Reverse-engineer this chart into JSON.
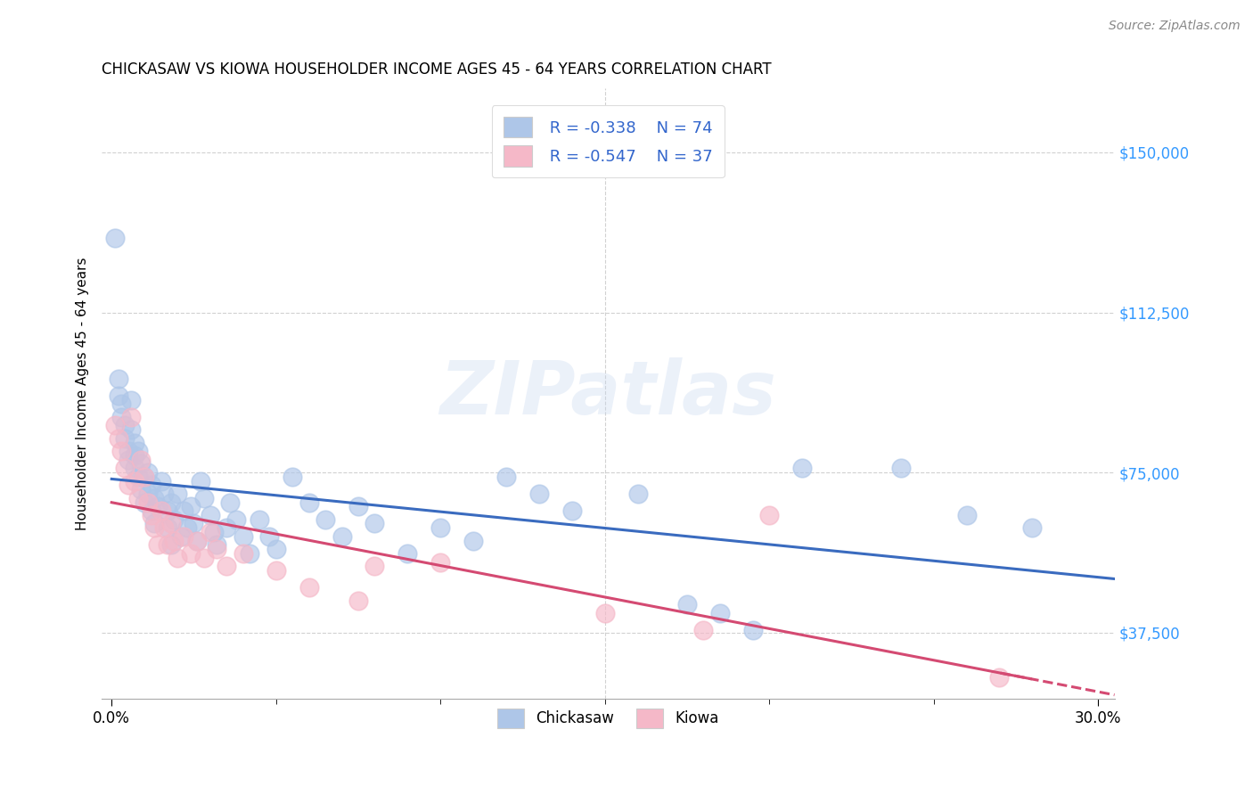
{
  "title": "CHICKASAW VS KIOWA HOUSEHOLDER INCOME AGES 45 - 64 YEARS CORRELATION CHART",
  "source": "Source: ZipAtlas.com",
  "xlabel_ticks": [
    "0.0%",
    "30.0%"
  ],
  "xlabel_tick_vals": [
    0.0,
    0.3
  ],
  "xlabel_minor_ticks": [
    0.05,
    0.1,
    0.15,
    0.2,
    0.25
  ],
  "ylabel_ticks": [
    "$37,500",
    "$75,000",
    "$112,500",
    "$150,000"
  ],
  "ylabel_tick_vals": [
    37500,
    75000,
    112500,
    150000
  ],
  "ylabel_label": "Householder Income Ages 45 - 64 years",
  "xlim": [
    -0.003,
    0.305
  ],
  "ylim": [
    22000,
    165000
  ],
  "watermark": "ZIPatlas",
  "chickasaw_color": "#aec6e8",
  "kiowa_color": "#f5b8c8",
  "chickasaw_line_color": "#3a6bbf",
  "kiowa_line_color": "#d44a72",
  "legend_r_chickasaw": "R = -0.338",
  "legend_n_chickasaw": "N = 74",
  "legend_r_kiowa": "R = -0.547",
  "legend_n_kiowa": "N = 37",
  "background_color": "#ffffff",
  "grid_color": "#cccccc",
  "chickasaw_scatter": [
    [
      0.001,
      130000
    ],
    [
      0.002,
      97000
    ],
    [
      0.002,
      93000
    ],
    [
      0.003,
      91000
    ],
    [
      0.003,
      88000
    ],
    [
      0.004,
      86000
    ],
    [
      0.004,
      83000
    ],
    [
      0.005,
      80000
    ],
    [
      0.005,
      78000
    ],
    [
      0.006,
      92000
    ],
    [
      0.006,
      85000
    ],
    [
      0.007,
      82000
    ],
    [
      0.007,
      79000
    ],
    [
      0.007,
      76000
    ],
    [
      0.008,
      80000
    ],
    [
      0.008,
      74000
    ],
    [
      0.009,
      77000
    ],
    [
      0.009,
      71000
    ],
    [
      0.01,
      74000
    ],
    [
      0.01,
      68000
    ],
    [
      0.011,
      75000
    ],
    [
      0.011,
      70000
    ],
    [
      0.012,
      72000
    ],
    [
      0.012,
      66000
    ],
    [
      0.013,
      69000
    ],
    [
      0.013,
      63000
    ],
    [
      0.014,
      67000
    ],
    [
      0.015,
      73000
    ],
    [
      0.016,
      70000
    ],
    [
      0.017,
      66000
    ],
    [
      0.017,
      62000
    ],
    [
      0.018,
      68000
    ],
    [
      0.018,
      58000
    ],
    [
      0.019,
      64000
    ],
    [
      0.02,
      70000
    ],
    [
      0.021,
      60000
    ],
    [
      0.022,
      66000
    ],
    [
      0.023,
      62000
    ],
    [
      0.024,
      67000
    ],
    [
      0.025,
      63000
    ],
    [
      0.026,
      59000
    ],
    [
      0.027,
      73000
    ],
    [
      0.028,
      69000
    ],
    [
      0.03,
      65000
    ],
    [
      0.031,
      61000
    ],
    [
      0.032,
      58000
    ],
    [
      0.035,
      62000
    ],
    [
      0.036,
      68000
    ],
    [
      0.038,
      64000
    ],
    [
      0.04,
      60000
    ],
    [
      0.042,
      56000
    ],
    [
      0.045,
      64000
    ],
    [
      0.048,
      60000
    ],
    [
      0.05,
      57000
    ],
    [
      0.055,
      74000
    ],
    [
      0.06,
      68000
    ],
    [
      0.065,
      64000
    ],
    [
      0.07,
      60000
    ],
    [
      0.075,
      67000
    ],
    [
      0.08,
      63000
    ],
    [
      0.09,
      56000
    ],
    [
      0.1,
      62000
    ],
    [
      0.11,
      59000
    ],
    [
      0.12,
      74000
    ],
    [
      0.13,
      70000
    ],
    [
      0.14,
      66000
    ],
    [
      0.16,
      70000
    ],
    [
      0.175,
      44000
    ],
    [
      0.185,
      42000
    ],
    [
      0.195,
      38000
    ],
    [
      0.21,
      76000
    ],
    [
      0.24,
      76000
    ],
    [
      0.26,
      65000
    ],
    [
      0.28,
      62000
    ]
  ],
  "kiowa_scatter": [
    [
      0.001,
      86000
    ],
    [
      0.002,
      83000
    ],
    [
      0.003,
      80000
    ],
    [
      0.004,
      76000
    ],
    [
      0.005,
      72000
    ],
    [
      0.006,
      88000
    ],
    [
      0.007,
      73000
    ],
    [
      0.008,
      69000
    ],
    [
      0.009,
      78000
    ],
    [
      0.01,
      74000
    ],
    [
      0.011,
      68000
    ],
    [
      0.012,
      65000
    ],
    [
      0.013,
      62000
    ],
    [
      0.014,
      58000
    ],
    [
      0.015,
      66000
    ],
    [
      0.016,
      62000
    ],
    [
      0.017,
      58000
    ],
    [
      0.018,
      63000
    ],
    [
      0.019,
      59000
    ],
    [
      0.02,
      55000
    ],
    [
      0.022,
      60000
    ],
    [
      0.024,
      56000
    ],
    [
      0.026,
      59000
    ],
    [
      0.028,
      55000
    ],
    [
      0.03,
      61000
    ],
    [
      0.032,
      57000
    ],
    [
      0.035,
      53000
    ],
    [
      0.04,
      56000
    ],
    [
      0.05,
      52000
    ],
    [
      0.06,
      48000
    ],
    [
      0.075,
      45000
    ],
    [
      0.08,
      53000
    ],
    [
      0.1,
      54000
    ],
    [
      0.15,
      42000
    ],
    [
      0.18,
      38000
    ],
    [
      0.2,
      65000
    ],
    [
      0.27,
      27000
    ]
  ]
}
